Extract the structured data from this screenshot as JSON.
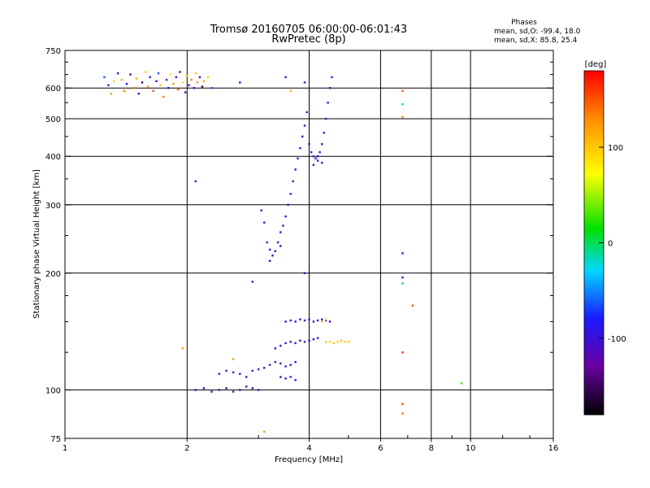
{
  "title_line1": "Tromsø 20160705 06:00:00-06:01:43",
  "title_line2": "RwPretec (8p)",
  "phases": {
    "heading": "Phases",
    "line_o": "mean, sd,O: -99.4, 18.0",
    "line_x": "mean, sd,X:  85.8, 25.4"
  },
  "colorbar": {
    "unit": "[deg]",
    "ticks": [
      "100",
      "0",
      "-100"
    ],
    "tick_values": [
      100,
      0,
      -100
    ],
    "range": [
      -180,
      180
    ],
    "palette": [
      "#000000",
      "#6a00a0",
      "#1a1aff",
      "#00d8ff",
      "#00e000",
      "#ffff00",
      "#ff8c00",
      "#ff0000"
    ]
  },
  "chart_data": {
    "type": "scatter",
    "xlabel": "Frequency [MHz]",
    "ylabel": "Stationary phase Virtual Height [km]",
    "x_scale": "log",
    "y_scale": "log",
    "xlim": [
      1,
      16
    ],
    "ylim": [
      75,
      750
    ],
    "x_ticks": [
      1,
      2,
      4,
      6,
      8,
      10,
      16
    ],
    "x_tick_labels": [
      "1",
      "2",
      "4",
      "6",
      "8",
      "10",
      "16"
    ],
    "y_ticks": [
      75,
      100,
      200,
      300,
      400,
      500,
      600,
      750
    ],
    "y_tick_labels": [
      "75",
      "100",
      "200",
      "300",
      "400",
      "500",
      "600",
      "750"
    ],
    "grid": true,
    "points": [
      [
        1.25,
        640,
        -60
      ],
      [
        1.28,
        610,
        -110
      ],
      [
        1.3,
        580,
        120
      ],
      [
        1.32,
        625,
        95
      ],
      [
        1.35,
        655,
        -95
      ],
      [
        1.38,
        630,
        110
      ],
      [
        1.4,
        590,
        130
      ],
      [
        1.42,
        615,
        -80
      ],
      [
        1.45,
        650,
        -120
      ],
      [
        1.48,
        600,
        140
      ],
      [
        1.5,
        635,
        115
      ],
      [
        1.52,
        580,
        -100
      ],
      [
        1.55,
        620,
        -150
      ],
      [
        1.58,
        660,
        100
      ],
      [
        1.6,
        605,
        125
      ],
      [
        1.62,
        640,
        -90
      ],
      [
        1.65,
        590,
        150
      ],
      [
        1.68,
        625,
        -110
      ],
      [
        1.7,
        655,
        -60
      ],
      [
        1.72,
        610,
        105
      ],
      [
        1.75,
        570,
        135
      ],
      [
        1.78,
        630,
        -130
      ],
      [
        1.8,
        600,
        -95
      ],
      [
        1.82,
        650,
        90
      ],
      [
        1.85,
        615,
        120
      ],
      [
        1.88,
        640,
        -105
      ],
      [
        1.9,
        595,
        145
      ],
      [
        1.92,
        660,
        -140
      ],
      [
        1.95,
        620,
        95
      ],
      [
        1.98,
        585,
        -115
      ],
      [
        2.0,
        645,
        110
      ],
      [
        2.02,
        610,
        -85
      ],
      [
        2.05,
        630,
        130
      ],
      [
        2.08,
        600,
        -120
      ],
      [
        2.1,
        655,
        100
      ],
      [
        2.12,
        620,
        125
      ],
      [
        2.15,
        640,
        -100
      ],
      [
        2.18,
        605,
        -150
      ],
      [
        2.2,
        625,
        115
      ],
      [
        2.25,
        640,
        95
      ],
      [
        2.3,
        600,
        -60
      ],
      [
        2.7,
        620,
        -100
      ],
      [
        3.5,
        640,
        -110
      ],
      [
        3.6,
        590,
        120
      ],
      [
        3.9,
        620,
        -100
      ],
      [
        3.05,
        290,
        -100
      ],
      [
        3.1,
        270,
        -110
      ],
      [
        3.15,
        240,
        -120
      ],
      [
        3.2,
        230,
        -95
      ],
      [
        3.25,
        222,
        -110
      ],
      [
        3.3,
        228,
        -100
      ],
      [
        3.35,
        240,
        -105
      ],
      [
        3.4,
        255,
        -95
      ],
      [
        3.45,
        265,
        -110
      ],
      [
        3.5,
        280,
        -100
      ],
      [
        3.55,
        300,
        -105
      ],
      [
        3.6,
        320,
        -95
      ],
      [
        3.65,
        345,
        -100
      ],
      [
        3.7,
        370,
        -110
      ],
      [
        3.75,
        395,
        -100
      ],
      [
        3.8,
        420,
        -95
      ],
      [
        3.85,
        450,
        -105
      ],
      [
        3.9,
        480,
        -100
      ],
      [
        3.95,
        520,
        -110
      ],
      [
        4.0,
        430,
        -100
      ],
      [
        4.05,
        410,
        -105
      ],
      [
        4.1,
        400,
        -95
      ],
      [
        4.15,
        395,
        -100
      ],
      [
        4.2,
        400,
        -110
      ],
      [
        4.25,
        410,
        -100
      ],
      [
        4.3,
        430,
        -95
      ],
      [
        4.35,
        460,
        -105
      ],
      [
        4.4,
        500,
        -100
      ],
      [
        4.45,
        550,
        -110
      ],
      [
        4.5,
        600,
        -100
      ],
      [
        4.55,
        640,
        -95
      ],
      [
        4.1,
        380,
        -100
      ],
      [
        4.2,
        390,
        -105
      ],
      [
        4.3,
        385,
        -95
      ],
      [
        3.2,
        215,
        -100
      ],
      [
        3.4,
        235,
        -110
      ],
      [
        2.1,
        100,
        -100
      ],
      [
        2.2,
        101,
        -95
      ],
      [
        2.3,
        99,
        -105
      ],
      [
        2.4,
        100,
        -100
      ],
      [
        2.5,
        101,
        -110
      ],
      [
        2.6,
        99,
        -100
      ],
      [
        2.7,
        100,
        -95
      ],
      [
        2.8,
        102,
        -105
      ],
      [
        2.9,
        101,
        -100
      ],
      [
        3.0,
        100,
        -110
      ],
      [
        2.4,
        110,
        -100
      ],
      [
        2.5,
        112,
        -105
      ],
      [
        2.6,
        111,
        -95
      ],
      [
        2.7,
        110,
        -100
      ],
      [
        2.8,
        108,
        -110
      ],
      [
        2.9,
        112,
        -100
      ],
      [
        3.0,
        113,
        -105
      ],
      [
        3.1,
        114,
        -95
      ],
      [
        3.2,
        116,
        -100
      ],
      [
        3.3,
        118,
        -110
      ],
      [
        3.4,
        117,
        -100
      ],
      [
        3.5,
        115,
        -105
      ],
      [
        3.6,
        116,
        -95
      ],
      [
        3.7,
        118,
        -100
      ],
      [
        3.3,
        128,
        -100
      ],
      [
        3.4,
        130,
        -105
      ],
      [
        3.5,
        132,
        -95
      ],
      [
        3.6,
        133,
        -100
      ],
      [
        3.7,
        132,
        -110
      ],
      [
        3.8,
        134,
        -100
      ],
      [
        3.9,
        133,
        -105
      ],
      [
        4.0,
        134,
        -95
      ],
      [
        4.1,
        135,
        -100
      ],
      [
        4.2,
        136,
        -110
      ],
      [
        3.5,
        150,
        -100
      ],
      [
        3.6,
        151,
        -105
      ],
      [
        3.7,
        150,
        -95
      ],
      [
        3.8,
        152,
        -100
      ],
      [
        3.9,
        151,
        -110
      ],
      [
        4.0,
        152,
        -100
      ],
      [
        4.1,
        150,
        -105
      ],
      [
        4.2,
        151,
        -95
      ],
      [
        4.3,
        152,
        -100
      ],
      [
        4.4,
        151,
        -110
      ],
      [
        4.5,
        150,
        -100
      ],
      [
        3.4,
        108,
        -100
      ],
      [
        3.5,
        107,
        -105
      ],
      [
        3.6,
        108,
        -95
      ],
      [
        3.7,
        106,
        -100
      ],
      [
        4.4,
        133,
        100
      ],
      [
        4.5,
        133,
        95
      ],
      [
        4.6,
        132,
        105
      ],
      [
        4.7,
        133,
        100
      ],
      [
        4.8,
        134,
        110
      ],
      [
        4.9,
        133,
        95
      ],
      [
        5.0,
        133,
        100
      ],
      [
        4.3,
        150,
        110
      ],
      [
        4.4,
        152,
        95
      ],
      [
        6.8,
        590,
        150
      ],
      [
        6.8,
        545,
        -10
      ],
      [
        6.8,
        505,
        130
      ],
      [
        6.8,
        225,
        -100
      ],
      [
        6.8,
        195,
        -110
      ],
      [
        6.8,
        188,
        -20
      ],
      [
        6.8,
        125,
        160
      ],
      [
        6.8,
        92,
        150
      ],
      [
        6.8,
        87,
        140
      ],
      [
        7.2,
        165,
        150
      ],
      [
        9.5,
        104,
        40
      ],
      [
        3.1,
        78,
        120
      ],
      [
        1.95,
        128,
        120
      ],
      [
        2.1,
        345,
        -100
      ],
      [
        2.9,
        190,
        -130
      ],
      [
        2.6,
        120,
        120
      ],
      [
        3.9,
        200,
        -100
      ]
    ]
  }
}
